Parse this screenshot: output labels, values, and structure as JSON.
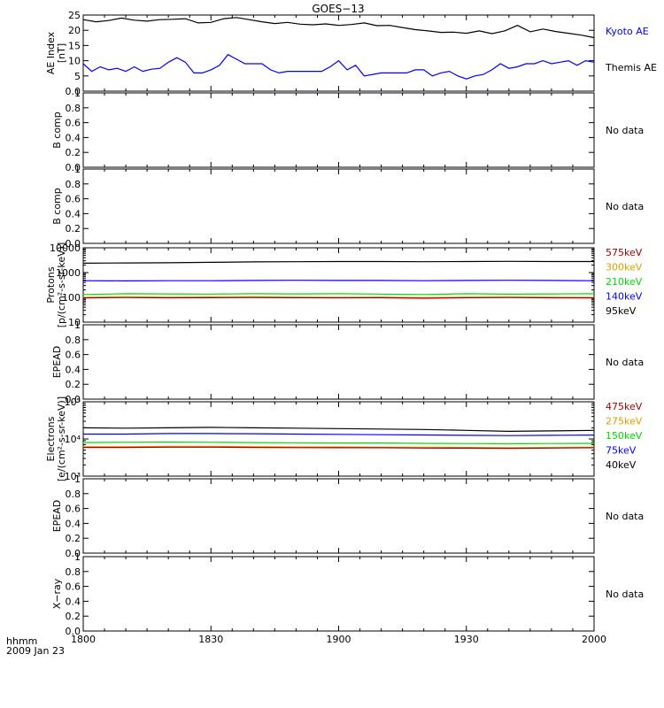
{
  "title": "GOES−13",
  "time_axis": {
    "label_left_line1": "hhmm",
    "label_left_line2": "2009 Jan 23",
    "ticks": [
      "1800",
      "1830",
      "1900",
      "1930",
      "2000"
    ],
    "tick_minutes": [
      0,
      30,
      60,
      90,
      120
    ]
  },
  "colors": {
    "axis": "#000000",
    "kyoto": "#0000ff",
    "themis": "#000000",
    "red": "#aa0000",
    "orange": "#e0a000",
    "green": "#00dd00",
    "blue": "#0000ff",
    "black": "#000000"
  },
  "chart_data": [
    {
      "id": "ae",
      "type": "line",
      "ylabel": "AE Index\n[nT]",
      "ylim": [
        0,
        25
      ],
      "yticks": [
        0,
        5,
        10,
        15,
        20,
        25
      ],
      "legend": [
        {
          "label": "Kyoto AE",
          "color": "#0000ff"
        },
        {
          "label": "Themis AE",
          "color": "#000000"
        }
      ],
      "series": [
        {
          "name": "Themis AE",
          "color": "#000000",
          "x": [
            0,
            3,
            6,
            9,
            12,
            15,
            18,
            21,
            24,
            27,
            30,
            33,
            36,
            39,
            42,
            45,
            48,
            51,
            54,
            57,
            60,
            63,
            66,
            69,
            72,
            75,
            78,
            81,
            84,
            87,
            90,
            93,
            96,
            99,
            102,
            105,
            108,
            111,
            114,
            117,
            120
          ],
          "y": [
            23.5,
            22.8,
            23.2,
            24.0,
            23.3,
            23.0,
            23.5,
            23.6,
            23.8,
            22.4,
            22.6,
            23.8,
            24.2,
            23.5,
            22.8,
            22.2,
            22.6,
            22.0,
            21.8,
            22.1,
            21.6,
            21.9,
            22.4,
            21.5,
            21.6,
            20.9,
            20.2,
            19.8,
            19.3,
            19.4,
            19.0,
            19.8,
            18.9,
            19.8,
            21.6,
            19.5,
            20.4,
            19.6,
            19.0,
            18.4,
            17.6
          ]
        },
        {
          "name": "Kyoto AE",
          "color": "#0000ff",
          "x": [
            0,
            2,
            4,
            6,
            8,
            10,
            12,
            14,
            16,
            18,
            20,
            22,
            24,
            26,
            28,
            30,
            32,
            34,
            36,
            38,
            40,
            42,
            44,
            46,
            48,
            50,
            52,
            54,
            56,
            58,
            60,
            62,
            64,
            66,
            68,
            70,
            72,
            74,
            76,
            78,
            80,
            82,
            84,
            86,
            88,
            90,
            92,
            94,
            96,
            98,
            100,
            102,
            104,
            106,
            108,
            110,
            112,
            114,
            116,
            118,
            120
          ],
          "y": [
            9.0,
            6.5,
            8.0,
            7.0,
            7.5,
            6.5,
            8.0,
            6.5,
            7.2,
            7.5,
            9.5,
            11.0,
            9.5,
            6.0,
            6.0,
            7.0,
            8.5,
            12.0,
            10.5,
            9.0,
            9.0,
            9.0,
            7.0,
            6.0,
            6.5,
            6.5,
            6.5,
            6.5,
            6.5,
            8.0,
            10.0,
            7.0,
            8.5,
            5.0,
            5.5,
            6.0,
            6.0,
            6.0,
            6.0,
            7.0,
            7.0,
            5.0,
            6.0,
            6.5,
            5.0,
            4.0,
            5.0,
            5.5,
            7.0,
            9.0,
            7.5,
            8.0,
            9.0,
            9.0,
            10.0,
            9.0,
            9.5,
            10.0,
            8.5,
            10.0,
            9.5
          ]
        }
      ]
    },
    {
      "id": "b1",
      "type": "line",
      "ylabel": "B comp",
      "ylim": [
        0,
        1
      ],
      "yticks": [
        0.0,
        0.2,
        0.4,
        0.6,
        0.8,
        1.0
      ],
      "note": "No data",
      "series": []
    },
    {
      "id": "b2",
      "type": "line",
      "ylabel": "B comp",
      "ylim": [
        0,
        1
      ],
      "yticks": [
        0.0,
        0.2,
        0.4,
        0.6,
        0.8,
        1.0
      ],
      "note": "No data",
      "series": []
    },
    {
      "id": "protons",
      "type": "line",
      "log": true,
      "ylabel": "Protons\n[p/(cm²-s-sr-keV)]",
      "ylim": [
        10,
        10000
      ],
      "yticks": [
        10,
        100,
        1000,
        10000
      ],
      "legend": [
        {
          "label": "575keV",
          "color": "#aa0000"
        },
        {
          "label": "300keV",
          "color": "#e0a000"
        },
        {
          "label": "210keV",
          "color": "#00dd00"
        },
        {
          "label": "140keV",
          "color": "#0000ff"
        },
        {
          "label": "95keV",
          "color": "#000000"
        }
      ],
      "series": [
        {
          "name": "95keV",
          "color": "#000000",
          "x": [
            0,
            10,
            20,
            30,
            40,
            50,
            60,
            70,
            80,
            90,
            100,
            110,
            120
          ],
          "y": [
            2400,
            2450,
            2500,
            2600,
            2700,
            2750,
            2800,
            2800,
            2750,
            2800,
            2850,
            2800,
            2800
          ]
        },
        {
          "name": "140keV",
          "color": "#0000ff",
          "x": [
            0,
            10,
            20,
            30,
            40,
            50,
            60,
            70,
            80,
            90,
            100,
            110,
            120
          ],
          "y": [
            470,
            460,
            470,
            470,
            480,
            490,
            480,
            480,
            470,
            480,
            490,
            480,
            470
          ]
        },
        {
          "name": "210keV",
          "color": "#00dd00",
          "x": [
            0,
            10,
            20,
            30,
            40,
            50,
            60,
            70,
            80,
            90,
            100,
            110,
            120
          ],
          "y": [
            130,
            140,
            138,
            136,
            140,
            138,
            140,
            136,
            130,
            140,
            135,
            138,
            140
          ]
        },
        {
          "name": "300keV",
          "color": "#e0a000",
          "x": [
            0,
            10,
            20,
            30,
            40,
            50,
            60,
            70,
            80,
            90,
            100,
            110,
            120
          ],
          "y": [
            100,
            104,
            102,
            103,
            104,
            102,
            100,
            102,
            98,
            102,
            103,
            101,
            100
          ]
        },
        {
          "name": "575keV",
          "color": "#aa0000",
          "x": [
            0,
            10,
            20,
            30,
            40,
            50,
            60,
            70,
            80,
            90,
            100,
            110,
            120
          ],
          "y": [
            95,
            98,
            96,
            97,
            99,
            97,
            96,
            97,
            92,
            97,
            98,
            96,
            95
          ]
        }
      ]
    },
    {
      "id": "epead1",
      "type": "line",
      "ylabel": "EPEAD",
      "ylim": [
        0,
        1
      ],
      "yticks": [
        0.0,
        0.2,
        0.4,
        0.6,
        0.8,
        1.0
      ],
      "note": "No data",
      "series": []
    },
    {
      "id": "electrons",
      "type": "line",
      "log": true,
      "ylabel": "Electrons\n[e/(cm²-s-sr-keV)]",
      "ylim": [
        1000,
        100000
      ],
      "yticks": [
        1000,
        10000,
        100000
      ],
      "ytick_labels": [
        "10³",
        "10⁴",
        "10⁵"
      ],
      "legend": [
        {
          "label": "475keV",
          "color": "#aa0000"
        },
        {
          "label": "275keV",
          "color": "#e0a000"
        },
        {
          "label": "150keV",
          "color": "#00dd00"
        },
        {
          "label": "75keV",
          "color": "#0000ff"
        },
        {
          "label": "40keV",
          "color": "#000000"
        }
      ],
      "series": [
        {
          "name": "40keV",
          "color": "#000000",
          "x": [
            0,
            10,
            20,
            30,
            40,
            50,
            60,
            70,
            80,
            90,
            100,
            110,
            120
          ],
          "y": [
            20000,
            19500,
            20000,
            20500,
            20000,
            19500,
            19000,
            18500,
            18000,
            17000,
            16000,
            16500,
            17000
          ]
        },
        {
          "name": "75keV",
          "color": "#0000ff",
          "x": [
            0,
            10,
            20,
            30,
            40,
            50,
            60,
            70,
            80,
            90,
            100,
            110,
            120
          ],
          "y": [
            13500,
            13500,
            14000,
            14000,
            13800,
            13500,
            13300,
            13000,
            12800,
            12500,
            12300,
            12500,
            12700
          ]
        },
        {
          "name": "150keV",
          "color": "#00dd00",
          "x": [
            0,
            10,
            20,
            30,
            40,
            50,
            60,
            70,
            80,
            90,
            100,
            110,
            120
          ],
          "y": [
            8000,
            8100,
            8200,
            8100,
            8000,
            7900,
            7800,
            7800,
            7600,
            7500,
            7400,
            7500,
            7600
          ]
        },
        {
          "name": "275keV",
          "color": "#e0a000",
          "x": [
            0,
            10,
            20,
            30,
            40,
            50,
            60,
            70,
            80,
            90,
            100,
            110,
            120
          ],
          "y": [
            6200,
            6200,
            6300,
            6300,
            6200,
            6100,
            6100,
            6000,
            6000,
            5900,
            5800,
            5900,
            6000
          ]
        },
        {
          "name": "475keV",
          "color": "#aa0000",
          "x": [
            0,
            10,
            20,
            30,
            40,
            50,
            60,
            70,
            80,
            90,
            100,
            110,
            120
          ],
          "y": [
            5900,
            5900,
            6000,
            6000,
            5900,
            5850,
            5800,
            5800,
            5700,
            5650,
            5600,
            5700,
            5800
          ]
        }
      ]
    },
    {
      "id": "epead2",
      "type": "line",
      "ylabel": "EPEAD",
      "ylim": [
        0,
        1
      ],
      "yticks": [
        0.0,
        0.2,
        0.4,
        0.6,
        0.8,
        1.0
      ],
      "note": "No data",
      "series": []
    },
    {
      "id": "xray",
      "type": "line",
      "ylabel": "X−ray",
      "ylim": [
        0,
        1
      ],
      "yticks": [
        0.0,
        0.2,
        0.4,
        0.6,
        0.8,
        1.0
      ],
      "note": "No data",
      "series": []
    }
  ]
}
